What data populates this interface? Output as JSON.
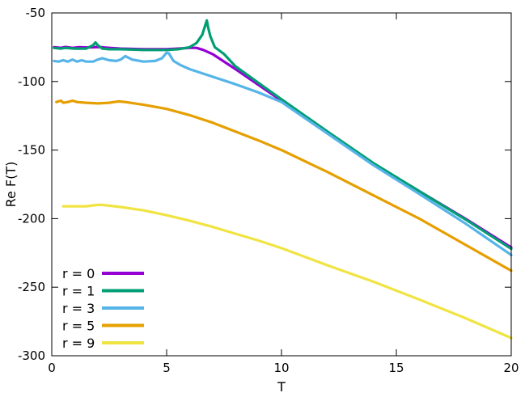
{
  "chart_data": {
    "type": "line",
    "xlabel": "T",
    "ylabel": "Re F(T)",
    "xlim": [
      0,
      20
    ],
    "ylim": [
      -300,
      -50
    ],
    "xticks": [
      0,
      5,
      10,
      15,
      20
    ],
    "yticks": [
      -300,
      -250,
      -200,
      -150,
      -100,
      -50
    ],
    "grid": false,
    "legend_position": "bottom-left",
    "series": [
      {
        "name": "r = 0",
        "color": "#9400d3",
        "points": [
          [
            0.1,
            -75
          ],
          [
            0.4,
            -75.5
          ],
          [
            0.6,
            -74.8
          ],
          [
            0.9,
            -75.5
          ],
          [
            1.2,
            -75
          ],
          [
            1.6,
            -75.2
          ],
          [
            2.0,
            -74.8
          ],
          [
            2.5,
            -75.5
          ],
          [
            3,
            -76
          ],
          [
            4,
            -76.5
          ],
          [
            5,
            -76.5
          ],
          [
            5.5,
            -76
          ],
          [
            6,
            -75.5
          ],
          [
            6.3,
            -75.5
          ],
          [
            6.6,
            -77
          ],
          [
            7,
            -80
          ],
          [
            8,
            -91
          ],
          [
            9,
            -102.5
          ],
          [
            10,
            -114
          ],
          [
            12,
            -137
          ],
          [
            14,
            -160
          ],
          [
            16,
            -180
          ],
          [
            18,
            -200
          ],
          [
            20,
            -221
          ]
        ]
      },
      {
        "name": "r = 1",
        "color": "#009e73",
        "points": [
          [
            0.1,
            -75.5
          ],
          [
            0.4,
            -76
          ],
          [
            0.6,
            -75.5
          ],
          [
            1,
            -76
          ],
          [
            1.5,
            -76
          ],
          [
            1.8,
            -73.5
          ],
          [
            1.9,
            -71.5
          ],
          [
            2.0,
            -73.5
          ],
          [
            2.2,
            -76
          ],
          [
            2.5,
            -76.5
          ],
          [
            3,
            -76.5
          ],
          [
            4,
            -77
          ],
          [
            5,
            -77
          ],
          [
            5.5,
            -76.5
          ],
          [
            6,
            -75
          ],
          [
            6.3,
            -72
          ],
          [
            6.55,
            -66
          ],
          [
            6.7,
            -58
          ],
          [
            6.75,
            -55.5
          ],
          [
            6.8,
            -60
          ],
          [
            6.9,
            -67
          ],
          [
            7.1,
            -75
          ],
          [
            7.5,
            -80
          ],
          [
            8,
            -89
          ],
          [
            9,
            -101
          ],
          [
            10,
            -113
          ],
          [
            12,
            -136.5
          ],
          [
            14,
            -159.5
          ],
          [
            16,
            -180
          ],
          [
            18,
            -200.5
          ],
          [
            20,
            -222
          ]
        ]
      },
      {
        "name": "r = 3",
        "color": "#56b4e9",
        "points": [
          [
            0.1,
            -85
          ],
          [
            0.3,
            -85.5
          ],
          [
            0.5,
            -84.5
          ],
          [
            0.7,
            -85.5
          ],
          [
            0.9,
            -84
          ],
          [
            1.1,
            -85.5
          ],
          [
            1.3,
            -84.5
          ],
          [
            1.5,
            -85.5
          ],
          [
            1.8,
            -85.5
          ],
          [
            2.0,
            -84
          ],
          [
            2.2,
            -83
          ],
          [
            2.5,
            -84.5
          ],
          [
            2.8,
            -85
          ],
          [
            3.0,
            -84
          ],
          [
            3.2,
            -81.5
          ],
          [
            3.5,
            -84
          ],
          [
            4,
            -85.5
          ],
          [
            4.5,
            -85
          ],
          [
            4.8,
            -83
          ],
          [
            5.0,
            -79
          ],
          [
            5.1,
            -79.5
          ],
          [
            5.3,
            -85
          ],
          [
            5.6,
            -88
          ],
          [
            6,
            -91
          ],
          [
            7,
            -96.5
          ],
          [
            8,
            -102
          ],
          [
            9,
            -108
          ],
          [
            10,
            -115
          ],
          [
            12,
            -138
          ],
          [
            14,
            -161
          ],
          [
            16,
            -182
          ],
          [
            18,
            -203.5
          ],
          [
            20,
            -226.5
          ]
        ]
      },
      {
        "name": "r = 5",
        "color": "#e69f00",
        "points": [
          [
            0.2,
            -115
          ],
          [
            0.4,
            -114
          ],
          [
            0.5,
            -115.5
          ],
          [
            0.7,
            -115
          ],
          [
            0.9,
            -114
          ],
          [
            1.1,
            -115
          ],
          [
            1.5,
            -115.5
          ],
          [
            2.0,
            -116
          ],
          [
            2.5,
            -115.5
          ],
          [
            2.9,
            -114.5
          ],
          [
            3.2,
            -115
          ],
          [
            4,
            -117
          ],
          [
            5,
            -120
          ],
          [
            6,
            -124.5
          ],
          [
            7,
            -130
          ],
          [
            8,
            -136.5
          ],
          [
            9,
            -143
          ],
          [
            10,
            -150
          ],
          [
            12,
            -166
          ],
          [
            14,
            -183
          ],
          [
            16,
            -200
          ],
          [
            18,
            -219
          ],
          [
            20,
            -238
          ]
        ]
      },
      {
        "name": "r = 9",
        "color": "#f0e442",
        "points": [
          [
            0.5,
            -191
          ],
          [
            1,
            -191
          ],
          [
            1.5,
            -191
          ],
          [
            2,
            -190
          ],
          [
            2.2,
            -190
          ],
          [
            3,
            -191.5
          ],
          [
            4,
            -194
          ],
          [
            5,
            -197.5
          ],
          [
            6,
            -201.5
          ],
          [
            7,
            -206
          ],
          [
            8,
            -211
          ],
          [
            9,
            -216
          ],
          [
            10,
            -221.5
          ],
          [
            12,
            -234
          ],
          [
            14,
            -246
          ],
          [
            16,
            -259
          ],
          [
            18,
            -272.5
          ],
          [
            20,
            -287
          ]
        ]
      }
    ]
  }
}
